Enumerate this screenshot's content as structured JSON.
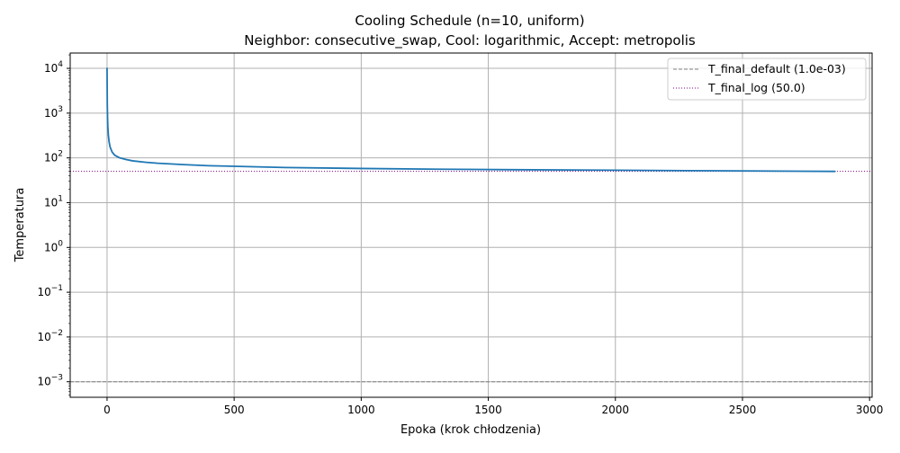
{
  "chart_data": {
    "type": "line",
    "title": "Cooling Schedule (n=10, uniform)",
    "subtitle": "Neighbor: consecutive_swap, Cool: logarithmic, Accept: metropolis",
    "xlabel": "Epoka (krok chłodzenia)",
    "ylabel": "Temperatura",
    "xlim": [
      -145,
      3010
    ],
    "ylim": [
      0.00045,
      22000
    ],
    "yscale": "log",
    "grid": true,
    "legend_position": "top-right",
    "x_ticks": [
      {
        "value": 0,
        "label": "0"
      },
      {
        "value": 500,
        "label": "500"
      },
      {
        "value": 1000,
        "label": "1000"
      },
      {
        "value": 1500,
        "label": "1500"
      },
      {
        "value": 2000,
        "label": "2000"
      },
      {
        "value": 2500,
        "label": "2500"
      },
      {
        "value": 3000,
        "label": "3000"
      }
    ],
    "y_ticks": [
      {
        "value": 0.001,
        "base": "10",
        "exp": "−3"
      },
      {
        "value": 0.01,
        "base": "10",
        "exp": "−2"
      },
      {
        "value": 0.1,
        "base": "10",
        "exp": "−1"
      },
      {
        "value": 1,
        "base": "10",
        "exp": "0"
      },
      {
        "value": 10,
        "base": "10",
        "exp": "1"
      },
      {
        "value": 100,
        "base": "10",
        "exp": "2"
      },
      {
        "value": 1000,
        "base": "10",
        "exp": "3"
      },
      {
        "value": 10000,
        "base": "10",
        "exp": "4"
      }
    ],
    "series": [
      {
        "name": "",
        "color": "#1f77b4",
        "style": "solid",
        "x": [
          0,
          1,
          2,
          3,
          5,
          8,
          12,
          20,
          30,
          50,
          75,
          100,
          150,
          200,
          300,
          400,
          500,
          700,
          1000,
          1300,
          1600,
          2000,
          2400,
          2864
        ],
        "y": [
          10000,
          1500,
          800,
          500,
          330,
          230,
          175,
          135,
          115,
          100,
          92,
          86,
          80,
          76,
          71,
          67,
          65,
          61,
          58,
          56,
          54.5,
          53,
          51.5,
          50
        ]
      }
    ],
    "hlines": [
      {
        "name": "T_final_default (1.0e-03)",
        "value": 0.001,
        "color": "#808080",
        "style": "dashed"
      },
      {
        "name": "T_final_log (50.0)",
        "value": 50.0,
        "color": "#800080",
        "style": "dotted"
      }
    ]
  }
}
